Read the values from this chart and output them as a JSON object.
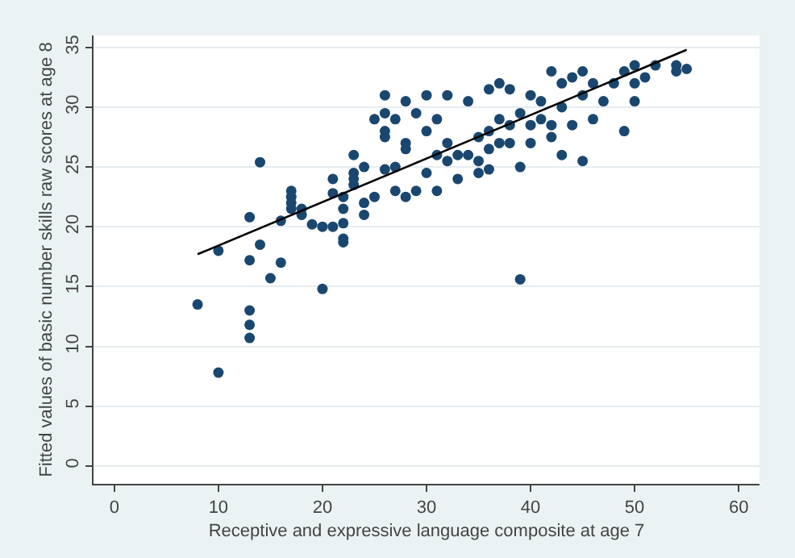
{
  "chart_data": {
    "type": "scatter",
    "xlabel": "Receptive and expressive language composite at age 7",
    "ylabel": "Fitted values of basic number skills raw scores at age 8",
    "xlim": [
      -2,
      62
    ],
    "xticks": [
      0,
      10,
      20,
      30,
      40,
      50,
      60
    ],
    "ylim": [
      -1.5,
      36
    ],
    "yticks": [
      0,
      5,
      10,
      15,
      20,
      25,
      30,
      35
    ],
    "grid": "y",
    "series": [
      {
        "marker": "circle",
        "color": "#1a476f",
        "x": [
          8,
          10,
          10,
          13,
          13,
          13,
          13,
          13,
          14,
          14,
          15,
          16,
          16,
          17,
          17,
          17,
          17,
          18,
          18,
          19,
          20,
          20,
          21,
          21,
          21,
          22,
          22,
          22,
          22,
          22,
          23,
          23,
          23,
          23,
          24,
          24,
          24,
          25,
          25,
          26,
          26,
          26,
          26,
          26,
          27,
          27,
          27,
          28,
          28,
          28,
          28,
          29,
          29,
          30,
          30,
          30,
          31,
          31,
          31,
          32,
          32,
          32,
          33,
          33,
          34,
          34,
          35,
          35,
          35,
          36,
          36,
          36,
          36,
          37,
          37,
          37,
          38,
          38,
          38,
          39,
          39,
          39,
          40,
          40,
          40,
          41,
          41,
          42,
          42,
          42,
          43,
          43,
          43,
          44,
          44,
          45,
          45,
          45,
          46,
          46,
          47,
          48,
          49,
          49,
          50,
          50,
          50,
          51,
          52,
          54,
          54,
          55
        ],
        "values": [
          13.5,
          7.8,
          18,
          10.7,
          11.8,
          13,
          17.2,
          20.8,
          25.4,
          18.5,
          15.7,
          20.5,
          17,
          23,
          22.5,
          21.5,
          22,
          21.5,
          21,
          20.2,
          20,
          14.8,
          20,
          22.8,
          24,
          19,
          18.7,
          20.3,
          21.5,
          22.5,
          23.5,
          24.5,
          26,
          24,
          21,
          25,
          22,
          22.5,
          29,
          28,
          24.8,
          29.5,
          31,
          27.5,
          25,
          23,
          29,
          22.5,
          27,
          30.5,
          26.5,
          29.5,
          23,
          31,
          28,
          24.5,
          26,
          29,
          23,
          27,
          31,
          25.5,
          26,
          24,
          26,
          30.5,
          27.5,
          24.5,
          25.5,
          28,
          24.8,
          31.5,
          26.5,
          29,
          27,
          32,
          31.5,
          28.5,
          27,
          15.6,
          29.5,
          25,
          28.5,
          31,
          27,
          29,
          30.5,
          33,
          27.5,
          28.5,
          32,
          30,
          26,
          32.5,
          28.5,
          33,
          31,
          25.5,
          32,
          29,
          30.5,
          32,
          28,
          33,
          32,
          30.5,
          33.5,
          32.5,
          33.5,
          33,
          33.5,
          33.2
        ]
      },
      {
        "type": "line",
        "marker": "none",
        "color": "#000000",
        "x": [
          8,
          55
        ],
        "values": [
          17.7,
          34.8
        ]
      }
    ]
  }
}
